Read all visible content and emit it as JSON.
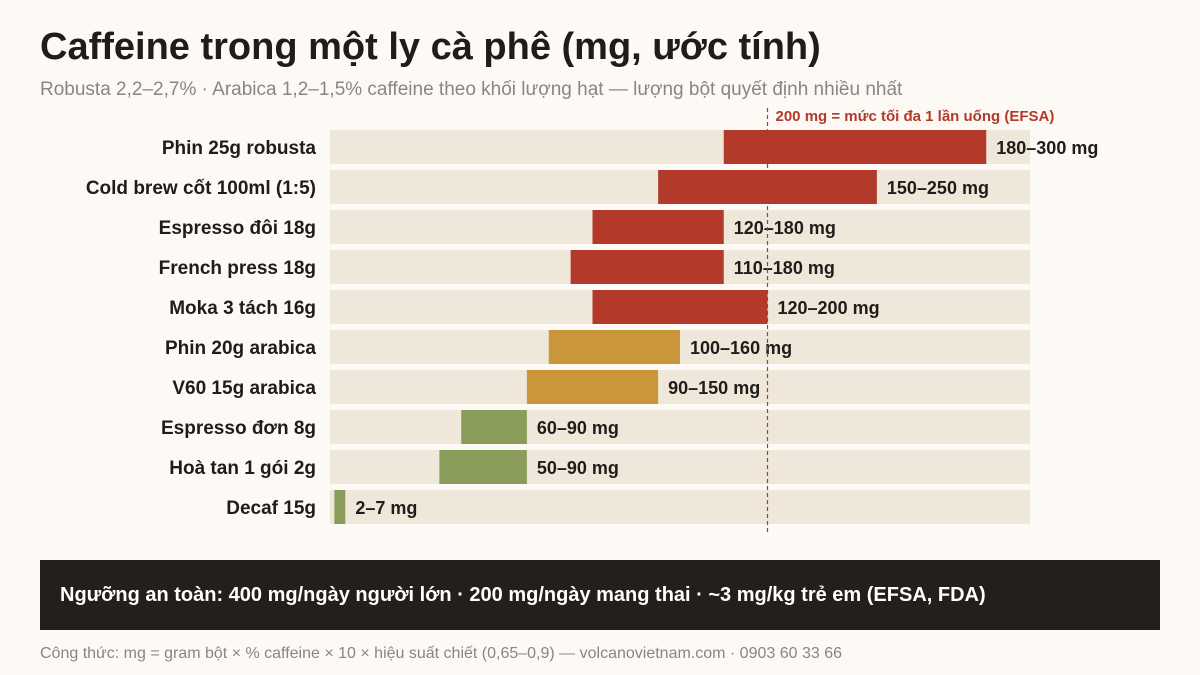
{
  "title": "Caffeine trong một ly cà phê (mg, ước tính)",
  "subtitle": "Robusta 2,2–2,7% · Arabica 1,2–1,5% caffeine theo khối lượng hạt — lượng bột quyết định nhiều nhất",
  "safety_band": "Ngưỡng an toàn: 400 mg/ngày người lớn · 200 mg/ngày mang thai · ~3 mg/kg trẻ em (EFSA, FDA)",
  "footnote": "Công thức: mg = gram bột × % caffeine × 10 × hiệu suất chiết (0,65–0,9)  —  volcanovietnam.com · 0903 60 33 66",
  "colors": {
    "track": "#efe7da",
    "high": "#b33a2a",
    "medium": "#c9973a",
    "low": "#8a9c5a",
    "reference": "#b33a2a",
    "label": "#1f1c1a",
    "background": "#fdfaf5"
  },
  "chart_data": {
    "type": "bar",
    "orientation": "horizontal",
    "x_range": [
      0,
      320
    ],
    "grid": false,
    "categories": [
      "Phin 25g robusta",
      "Cold brew cốt 100ml (1:5)",
      "Espresso đôi 18g",
      "French press 18g",
      "Moka 3 tách 16g",
      "Phin 20g arabica",
      "V60 15g arabica",
      "Espresso đơn 8g",
      "Hoà tan 1 gói 2g",
      "Decaf 15g"
    ],
    "ranges": [
      [
        180,
        300
      ],
      [
        150,
        250
      ],
      [
        120,
        180
      ],
      [
        110,
        180
      ],
      [
        120,
        200
      ],
      [
        100,
        160
      ],
      [
        90,
        150
      ],
      [
        60,
        90
      ],
      [
        50,
        90
      ],
      [
        2,
        7
      ]
    ],
    "range_labels": [
      "180–300 mg",
      "150–250 mg",
      "120–180 mg",
      "110–180 mg",
      "120–200 mg",
      "100–160 mg",
      "90–150 mg",
      "60–90 mg",
      "50–90 mg",
      "2–7 mg"
    ],
    "levels": [
      "high",
      "high",
      "high",
      "high",
      "high",
      "medium",
      "medium",
      "low",
      "low",
      "low"
    ],
    "reference_line": {
      "value": 200,
      "label": "200 mg = mức tối đa 1 lần uống (EFSA)"
    }
  }
}
